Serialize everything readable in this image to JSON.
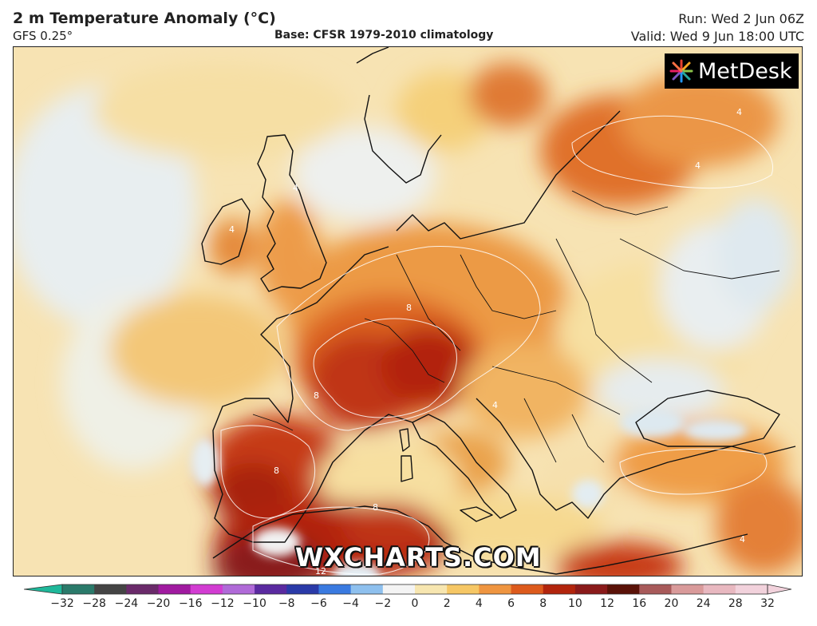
{
  "header": {
    "title": "2 m Temperature Anomaly (°C)",
    "model": "GFS 0.25°",
    "base": "Base: CFSR 1979-2010 climatology",
    "run": "Run: Wed 2 Jun 06Z",
    "valid": "Valid: Wed 9 Jun 18:00 UTC"
  },
  "map": {
    "region": "Europe and North Africa",
    "logo_text": "MetDesk",
    "watermark": "WXCHARTS.COM",
    "contour_labels": [
      "4",
      "4",
      "4",
      "4",
      "8",
      "8",
      "8",
      "8",
      "12",
      "4",
      "4"
    ]
  },
  "colorbar": {
    "ticks": [
      "−32",
      "−28",
      "−24",
      "−20",
      "−16",
      "−12",
      "−10",
      "−8",
      "−6",
      "−4",
      "−2",
      "0",
      "2",
      "4",
      "6",
      "8",
      "10",
      "12",
      "16",
      "20",
      "24",
      "28",
      "32"
    ],
    "colors": [
      "#1fb89a",
      "#2a7a6a",
      "#444444",
      "#6a2a6a",
      "#a01aa0",
      "#d23cd2",
      "#b06ad8",
      "#5a2aa0",
      "#2a3aa8",
      "#3a7ae0",
      "#8ec0ee",
      "#f4f4f4",
      "#f7e6b0",
      "#f6c765",
      "#ef9540",
      "#dd5a1c",
      "#b2240c",
      "#8a1a1a",
      "#5a1208",
      "#a85a5a",
      "#d99a9a",
      "#e8b8c0",
      "#f2d2dc"
    ]
  }
}
